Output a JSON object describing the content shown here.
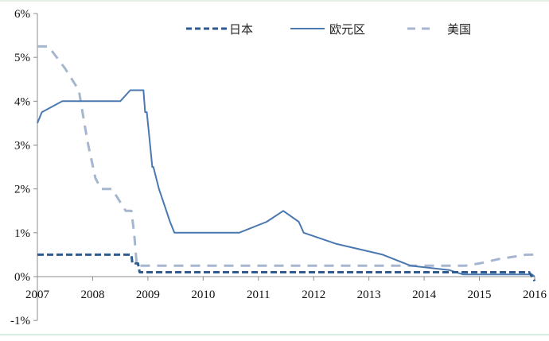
{
  "chart_data": {
    "type": "line",
    "title": "",
    "xlabel": "",
    "ylabel": "",
    "xlim": [
      2007,
      2016
    ],
    "ylim": [
      -1,
      6
    ],
    "x_ticks": [
      "2007",
      "2008",
      "2009",
      "2010",
      "2011",
      "2012",
      "2013",
      "2014",
      "2015",
      "2016"
    ],
    "y_ticks": [
      "6%",
      "5%",
      "4%",
      "3%",
      "2%",
      "1%",
      "0%",
      "-1%"
    ],
    "grid": false,
    "legend_position": "top",
    "series": [
      {
        "name": "日本",
        "style": "dashed",
        "color": "#2e5a8e",
        "points": [
          [
            2007.0,
            0.5
          ],
          [
            2008.7,
            0.5
          ],
          [
            2008.72,
            0.3
          ],
          [
            2008.82,
            0.3
          ],
          [
            2008.85,
            0.1
          ],
          [
            2015.9,
            0.1
          ],
          [
            2016.0,
            -0.1
          ]
        ]
      },
      {
        "name": "欧元区",
        "style": "solid",
        "color": "#4a78b0",
        "points": [
          [
            2007.0,
            3.5
          ],
          [
            2007.08,
            3.75
          ],
          [
            2007.45,
            4.0
          ],
          [
            2008.5,
            4.0
          ],
          [
            2008.68,
            4.25
          ],
          [
            2008.92,
            4.25
          ],
          [
            2008.95,
            3.75
          ],
          [
            2008.98,
            3.75
          ],
          [
            2009.02,
            3.25
          ],
          [
            2009.08,
            2.5
          ],
          [
            2009.1,
            2.5
          ],
          [
            2009.2,
            2.0
          ],
          [
            2009.4,
            1.25
          ],
          [
            2009.48,
            1.0
          ],
          [
            2010.65,
            1.0
          ],
          [
            2011.15,
            1.25
          ],
          [
            2011.45,
            1.5
          ],
          [
            2011.73,
            1.25
          ],
          [
            2011.82,
            1.0
          ],
          [
            2012.4,
            0.75
          ],
          [
            2013.25,
            0.5
          ],
          [
            2013.75,
            0.25
          ],
          [
            2014.45,
            0.15
          ],
          [
            2014.7,
            0.05
          ],
          [
            2015.85,
            0.05
          ],
          [
            2015.95,
            0.05
          ],
          [
            2016.0,
            0.0
          ]
        ]
      },
      {
        "name": "美国",
        "style": "dashed",
        "color": "#a7b6cf",
        "points": [
          [
            2007.0,
            5.25
          ],
          [
            2007.2,
            5.25
          ],
          [
            2007.5,
            4.75
          ],
          [
            2007.75,
            4.25
          ],
          [
            2007.85,
            3.5
          ],
          [
            2007.92,
            3.0
          ],
          [
            2008.05,
            2.25
          ],
          [
            2008.15,
            2.0
          ],
          [
            2008.35,
            2.0
          ],
          [
            2008.6,
            1.5
          ],
          [
            2008.7,
            1.5
          ],
          [
            2008.75,
            1.0
          ],
          [
            2008.8,
            0.25
          ],
          [
            2014.75,
            0.25
          ],
          [
            2015.0,
            0.3
          ],
          [
            2015.35,
            0.4
          ],
          [
            2015.85,
            0.5
          ],
          [
            2016.0,
            0.5
          ]
        ]
      }
    ]
  },
  "legend": {
    "items": [
      {
        "label": "日本"
      },
      {
        "label": "欧元区"
      },
      {
        "label": "美国"
      }
    ]
  }
}
